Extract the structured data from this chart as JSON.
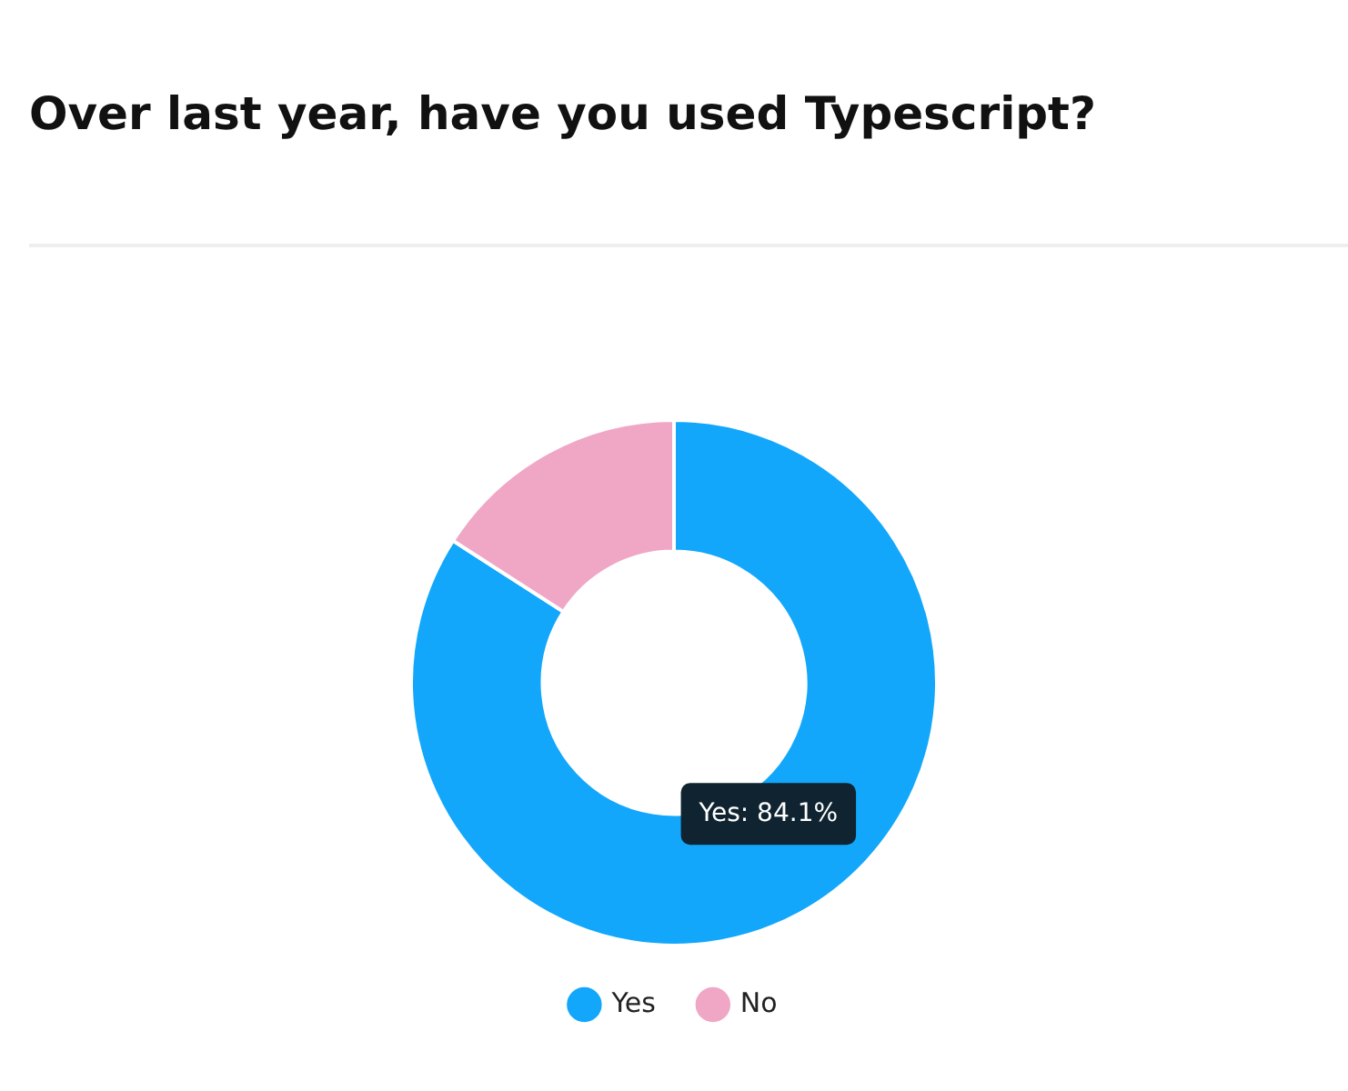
{
  "chart_data": {
    "type": "donut",
    "title": "Over last year, have you used Typescript?",
    "categories": [
      "Yes",
      "No"
    ],
    "values": [
      84.1,
      15.9
    ],
    "colors": [
      "#12a7fb",
      "#f0a7c6"
    ],
    "value_labels": [
      "Yes: 84.1%",
      null
    ],
    "legend": "bottom"
  }
}
